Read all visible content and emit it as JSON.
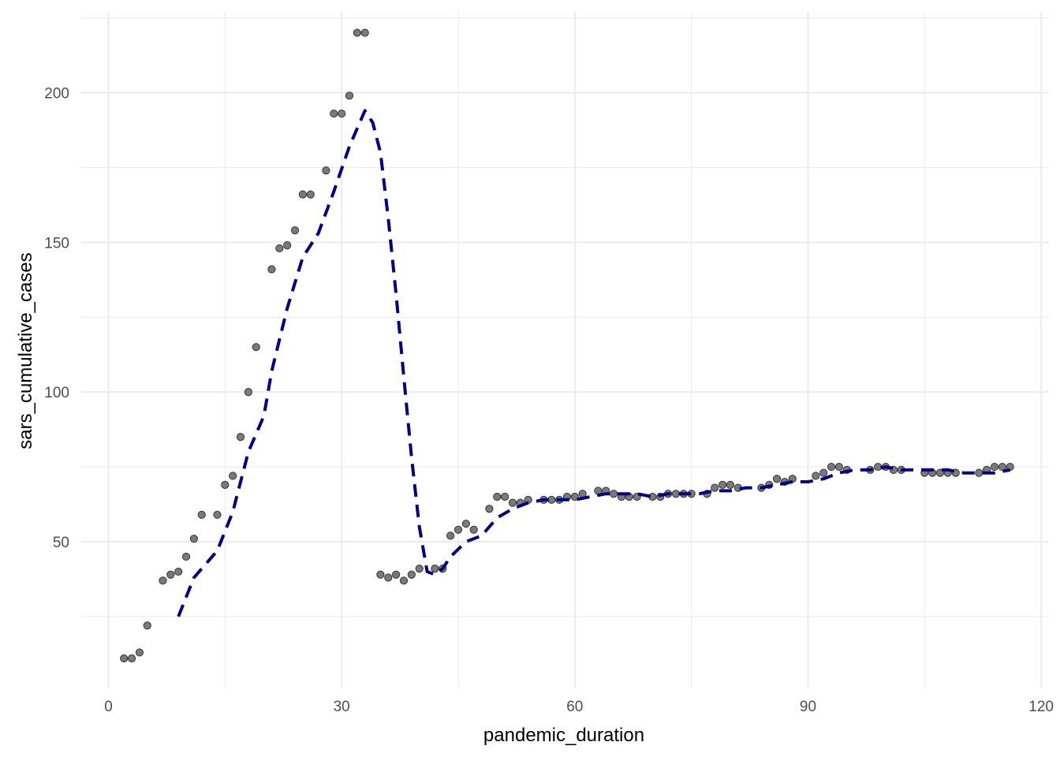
{
  "chart_data": {
    "type": "scatter",
    "xlabel": "pandemic_duration",
    "ylabel": "sars_cumulative_cases",
    "xlim": [
      -3.5,
      121
    ],
    "ylim": [
      1,
      227
    ],
    "x_ticks": [
      0,
      30,
      60,
      90,
      120
    ],
    "x_tick_labels": [
      "0",
      "30",
      "60",
      "90",
      "120"
    ],
    "y_ticks": [
      50,
      100,
      150,
      200
    ],
    "y_tick_labels": [
      "50",
      "100",
      "150",
      "200"
    ],
    "grid": true,
    "legend": "none",
    "colors": {
      "points_fill": "#7a7a7a",
      "points_stroke": "#333333",
      "line": "#00008b",
      "grid": "#ebebeb"
    },
    "series": [
      {
        "kind": "points",
        "x": [
          2,
          3,
          4,
          5,
          7,
          8,
          9,
          10,
          11,
          12,
          14,
          15,
          16,
          17,
          18,
          19,
          21,
          22,
          23,
          24,
          25,
          26,
          28,
          29,
          30,
          31,
          32,
          33,
          35,
          36,
          37,
          38,
          39,
          40,
          42,
          43,
          44,
          45,
          46,
          47,
          49,
          50,
          51,
          52,
          53,
          54,
          56,
          57,
          58,
          59,
          60,
          61,
          63,
          64,
          65,
          66,
          67,
          68,
          70,
          71,
          72,
          73,
          74,
          75,
          77,
          78,
          79,
          80,
          81,
          84,
          85,
          86,
          87,
          88,
          91,
          92,
          93,
          94,
          95,
          98,
          99,
          100,
          101,
          102,
          105,
          106,
          107,
          108,
          109,
          112,
          113,
          114,
          115,
          116
        ],
        "y": [
          11,
          11,
          13,
          22,
          37,
          39,
          40,
          45,
          51,
          59,
          59,
          69,
          72,
          85,
          100,
          115,
          141,
          148,
          149,
          154,
          166,
          166,
          174,
          193,
          193,
          199,
          220,
          220,
          39,
          38,
          39,
          37,
          39,
          41,
          41,
          41,
          52,
          54,
          56,
          54,
          61,
          65,
          65,
          63,
          63,
          64,
          64,
          64,
          64,
          65,
          65,
          66,
          67,
          67,
          66,
          65,
          65,
          65,
          65,
          65,
          66,
          66,
          66,
          66,
          66,
          68,
          69,
          69,
          68,
          68,
          69,
          71,
          70,
          71,
          72,
          73,
          75,
          75,
          74,
          74,
          75,
          75,
          74,
          74,
          73,
          73,
          73,
          73,
          73,
          73,
          74,
          75,
          75,
          75
        ]
      },
      {
        "kind": "dashed-line",
        "x": [
          9,
          11,
          14,
          16,
          18,
          20,
          21,
          23,
          25,
          27,
          29,
          31,
          33,
          34,
          35,
          36,
          37,
          38,
          39,
          40,
          41,
          42,
          43,
          44,
          46,
          48,
          50,
          52,
          54,
          56,
          58,
          60,
          62,
          64,
          66,
          68,
          70,
          72,
          74,
          76,
          78,
          80,
          82,
          84,
          86,
          88,
          90,
          92,
          94,
          96,
          98,
          100,
          102,
          104,
          106,
          108,
          110,
          112,
          114,
          116
        ],
        "y": [
          25,
          38,
          47,
          60,
          80,
          92,
          107,
          128,
          145,
          153,
          167,
          182,
          194,
          190,
          180,
          158,
          133,
          105,
          78,
          55,
          40,
          39,
          41,
          45,
          50,
          52,
          58,
          61,
          63,
          64,
          64,
          64,
          65,
          66,
          66,
          66,
          65,
          66,
          66,
          66,
          67,
          67,
          68,
          68,
          69,
          70,
          70,
          71,
          73,
          74,
          74,
          75,
          74,
          74,
          74,
          74,
          73,
          73,
          73,
          74
        ]
      }
    ]
  }
}
